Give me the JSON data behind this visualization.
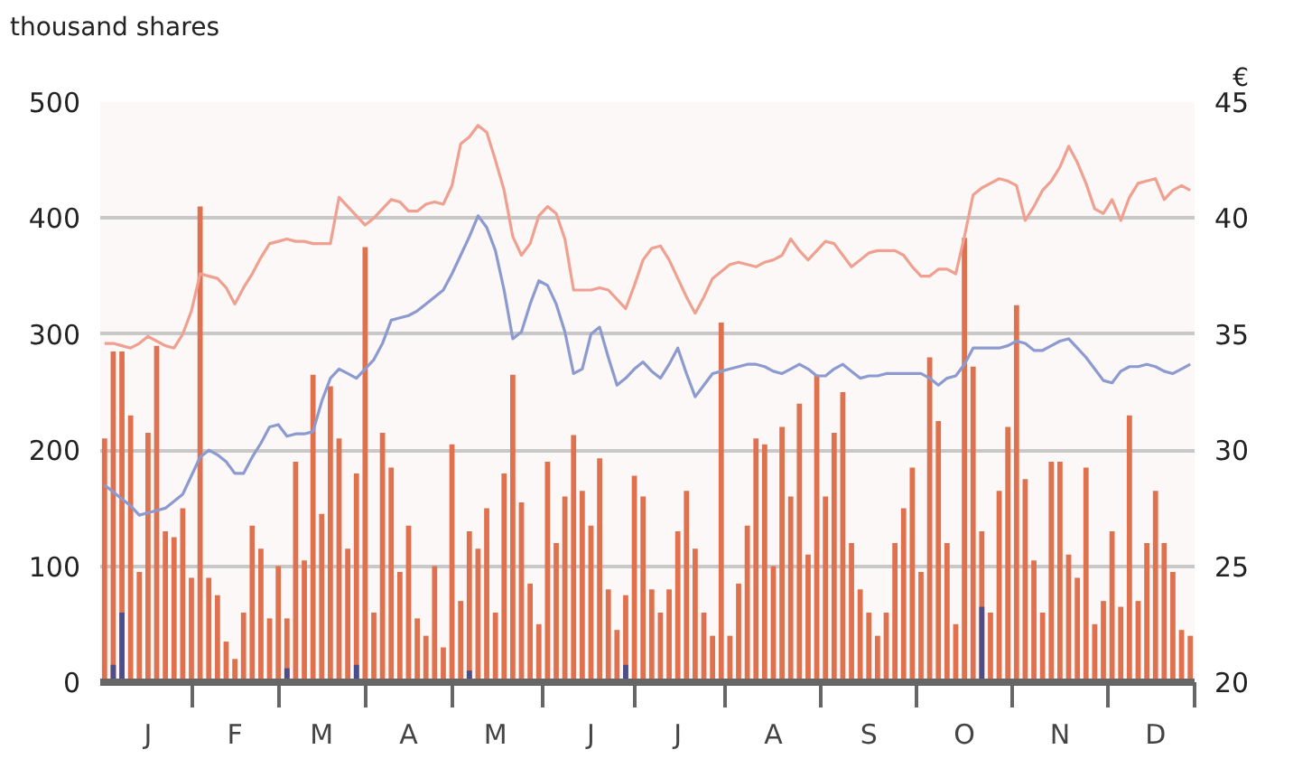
{
  "chart_data": {
    "type": "bar",
    "ylabel": "thousand shares",
    "y2label": "€",
    "ylim": [
      0,
      500
    ],
    "yticks": [
      0,
      100,
      200,
      300,
      400,
      500
    ],
    "y2lim": [
      20,
      45
    ],
    "y2ticks": [
      20,
      25,
      30,
      35,
      40,
      45
    ],
    "grid": "y",
    "categories": [
      null,
      null,
      null,
      null,
      null,
      "J",
      null,
      null,
      null,
      null,
      null,
      null,
      null,
      null,
      null,
      "F",
      null,
      null,
      null,
      null,
      null,
      null,
      null,
      null,
      null,
      "M",
      null,
      null,
      null,
      null,
      null,
      null,
      null,
      null,
      null,
      "A",
      null,
      null,
      null,
      null,
      null,
      null,
      null,
      null,
      null,
      "M",
      null,
      null,
      null,
      null,
      null,
      null,
      null,
      null,
      null,
      null,
      "J",
      null,
      null,
      null,
      null,
      null,
      null,
      null,
      null,
      null,
      "J",
      null,
      null,
      null,
      null,
      null,
      null,
      null,
      null,
      null,
      null,
      "A",
      null,
      null,
      null,
      null,
      null,
      null,
      null,
      null,
      null,
      null,
      "S",
      null,
      null,
      null,
      null,
      null,
      null,
      null,
      null,
      null,
      null,
      "O",
      null,
      null,
      null,
      null,
      null,
      null,
      null,
      null,
      null,
      null,
      "N",
      null,
      null,
      null,
      null,
      null,
      null,
      null,
      null,
      null,
      null,
      "D",
      null,
      null,
      null,
      null
    ],
    "series": [
      {
        "color": "#e0714f",
        "values": [
          210,
          285,
          285,
          230,
          95,
          215,
          290,
          130,
          125,
          150,
          90,
          410,
          90,
          75,
          35,
          20,
          60,
          135,
          115,
          55,
          100,
          55,
          190,
          105,
          265,
          145,
          255,
          210,
          115,
          180,
          375,
          60,
          215,
          185,
          95,
          135,
          55,
          40,
          100,
          30,
          205,
          70,
          130,
          115,
          150,
          60,
          180,
          265,
          155,
          85,
          50,
          190,
          120,
          160,
          213,
          165,
          135,
          193,
          80,
          45,
          75,
          178,
          160,
          80,
          60,
          80,
          130,
          165,
          115,
          60,
          40,
          310,
          40,
          85,
          135,
          210,
          205,
          100,
          220,
          160,
          240,
          110,
          265,
          160,
          215,
          250,
          120,
          80,
          60,
          40,
          60,
          120,
          150,
          185,
          95,
          280,
          225,
          120,
          50,
          383,
          272,
          130,
          60,
          165,
          220,
          325,
          175,
          105,
          60,
          190,
          190,
          110,
          90,
          185,
          50,
          70,
          130,
          65,
          230,
          70,
          120,
          165,
          120,
          95,
          45,
          40
        ]
      },
      {
        "color": "#4a4f8c",
        "values": [
          null,
          15,
          60,
          null,
          null,
          null,
          null,
          null,
          null,
          null,
          null,
          null,
          null,
          null,
          null,
          null,
          null,
          null,
          null,
          null,
          null,
          12,
          null,
          null,
          null,
          null,
          null,
          null,
          null,
          15,
          null,
          null,
          null,
          null,
          null,
          null,
          null,
          null,
          null,
          null,
          null,
          null,
          10,
          null,
          null,
          null,
          null,
          null,
          null,
          null,
          null,
          null,
          null,
          null,
          null,
          null,
          null,
          null,
          null,
          null,
          15,
          null,
          null,
          null,
          null,
          null,
          null,
          null,
          null,
          null,
          null,
          null,
          null,
          null,
          null,
          null,
          null,
          null,
          null,
          null,
          null,
          null,
          null,
          null,
          null,
          null,
          null,
          null,
          null,
          null,
          null,
          null,
          null,
          null,
          null,
          null,
          null,
          null,
          null,
          null,
          null,
          65,
          null,
          null,
          null,
          null,
          null,
          null,
          null,
          null,
          null,
          null,
          null,
          null,
          null,
          null,
          null,
          null,
          null,
          null,
          null,
          null,
          null,
          null,
          null,
          null
        ]
      },
      {
        "type": "line",
        "axis": "y2",
        "color": "#f0a090",
        "values": [
          34.6,
          34.6,
          34.5,
          34.4,
          34.6,
          34.9,
          34.7,
          34.5,
          34.4,
          35.0,
          36.0,
          37.6,
          37.5,
          37.4,
          37.0,
          36.3,
          37.0,
          37.6,
          38.3,
          38.9,
          39.0,
          39.1,
          39.0,
          39.0,
          38.9,
          38.9,
          38.9,
          40.9,
          40.5,
          40.1,
          39.7,
          40.0,
          40.4,
          40.8,
          40.7,
          40.3,
          40.3,
          40.6,
          40.7,
          40.6,
          41.4,
          43.2,
          43.5,
          44.0,
          43.7,
          42.5,
          41.2,
          39.2,
          38.4,
          38.9,
          40.1,
          40.5,
          40.2,
          39.1,
          36.9,
          36.9,
          36.9,
          37.0,
          36.9,
          36.5,
          36.1,
          37.1,
          38.2,
          38.7,
          38.8,
          38.2,
          37.4,
          36.6,
          35.9,
          36.6,
          37.4,
          37.7,
          38.0,
          38.1,
          38.0,
          37.9,
          38.1,
          38.2,
          38.4,
          39.1,
          38.6,
          38.2,
          38.6,
          39.0,
          38.9,
          38.4,
          37.9,
          38.2,
          38.5,
          38.6,
          38.6,
          38.6,
          38.4,
          37.9,
          37.5,
          37.5,
          37.8,
          37.8,
          37.6,
          39.2,
          41.0,
          41.3,
          41.5,
          41.7,
          41.6,
          41.4,
          39.9,
          40.5,
          41.2,
          41.6,
          42.2,
          43.1,
          42.4,
          41.5,
          40.4,
          40.2,
          40.8,
          39.9,
          40.9,
          41.5,
          41.6,
          41.7,
          40.8,
          41.2,
          41.4,
          41.2
        ]
      },
      {
        "type": "line",
        "axis": "y2",
        "color": "#8c9ad0",
        "values": [
          28.5,
          28.2,
          27.9,
          27.6,
          27.2,
          27.3,
          27.4,
          27.5,
          27.8,
          28.1,
          28.9,
          29.7,
          30.0,
          29.8,
          29.5,
          29.0,
          29.0,
          29.7,
          30.3,
          31.0,
          31.1,
          30.6,
          30.7,
          30.7,
          30.8,
          32.1,
          33.1,
          33.5,
          33.3,
          33.1,
          33.5,
          33.9,
          34.6,
          35.6,
          35.7,
          35.8,
          36.0,
          36.3,
          36.6,
          36.9,
          37.6,
          38.4,
          39.2,
          40.1,
          39.6,
          38.6,
          36.9,
          34.8,
          35.1,
          36.3,
          37.3,
          37.1,
          36.3,
          35.1,
          33.3,
          33.5,
          35.0,
          35.3,
          34.0,
          32.8,
          33.1,
          33.5,
          33.8,
          33.4,
          33.1,
          33.7,
          34.4,
          33.3,
          32.3,
          32.8,
          33.3,
          33.4,
          33.5,
          33.6,
          33.7,
          33.7,
          33.6,
          33.4,
          33.3,
          33.5,
          33.7,
          33.5,
          33.2,
          33.2,
          33.5,
          33.7,
          33.4,
          33.1,
          33.2,
          33.2,
          33.3,
          33.3,
          33.3,
          33.3,
          33.3,
          33.1,
          32.8,
          33.1,
          33.2,
          33.7,
          34.4,
          34.4,
          34.4,
          34.4,
          34.5,
          34.7,
          34.6,
          34.3,
          34.3,
          34.5,
          34.7,
          34.8,
          34.4,
          34.0,
          33.5,
          33.0,
          32.9,
          33.4,
          33.6,
          33.6,
          33.7,
          33.6,
          33.4,
          33.3,
          33.5,
          33.7
        ]
      }
    ]
  }
}
